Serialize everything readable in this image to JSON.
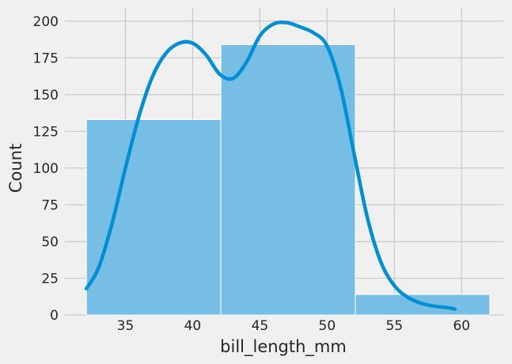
{
  "chart_data": {
    "type": "histogram",
    "title": "",
    "xlabel": "bill_length_mm",
    "ylabel": "Count",
    "xlim": [
      30.5,
      63.1
    ],
    "ylim": [
      0,
      209
    ],
    "xticks": [
      35,
      40,
      45,
      50,
      55,
      60
    ],
    "yticks": [
      0,
      25,
      50,
      75,
      100,
      125,
      150,
      175,
      200
    ],
    "grid": true,
    "legend": "none",
    "bins": [
      {
        "x0": 32.1,
        "x1": 42.1,
        "count": 133
      },
      {
        "x0": 42.1,
        "x1": 52.1,
        "count": 184
      },
      {
        "x0": 52.1,
        "x1": 62.1,
        "count": 14
      }
    ],
    "kde": {
      "x": [
        32.1,
        33,
        34,
        35,
        36,
        37,
        38,
        39,
        40,
        41,
        42,
        43,
        44,
        45,
        46,
        47,
        48,
        49,
        50,
        51,
        52,
        53,
        54,
        55,
        56,
        57,
        58,
        59,
        59.5
      ],
      "y": [
        18,
        32,
        62,
        100,
        135,
        162,
        178,
        185,
        185,
        177,
        164,
        161,
        172,
        190,
        198,
        199,
        196,
        192,
        183,
        155,
        110,
        66,
        36,
        20,
        12,
        8,
        6,
        5,
        4
      ]
    },
    "colors": {
      "bar_fill": "#77bee4",
      "bar_edge": "#ffffff",
      "kde_line": "#008fd5",
      "grid": "#cbcbcb",
      "background": "#f0f0f0"
    }
  }
}
